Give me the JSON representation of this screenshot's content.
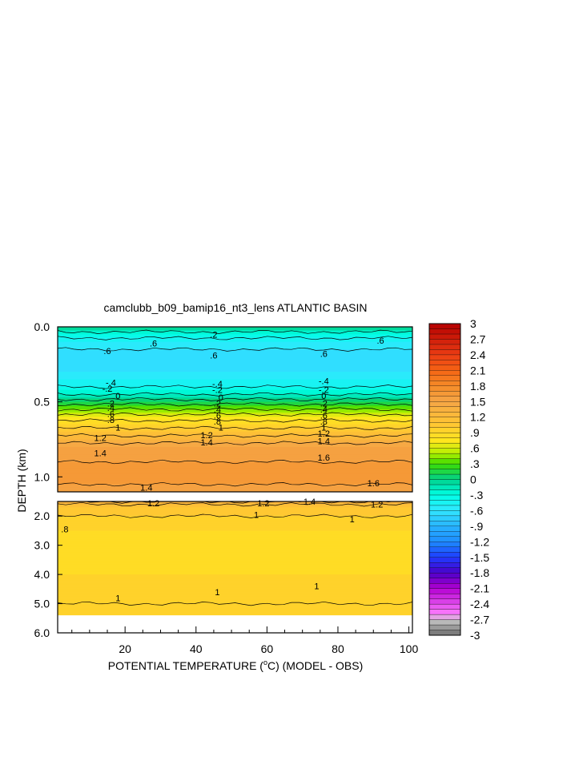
{
  "title": "camclubb_b09_bamip16_nt3_lens ATLANTIC BASIN",
  "ylabel": "DEPTH (km)",
  "xlabel": {
    "prefix": "POTENTIAL TEMPERATURE (",
    "degree": "o",
    "suffix": "C) (MODEL - OBS)"
  },
  "chart_data": {
    "type": "heatmap",
    "x_ticks": [
      20,
      40,
      60,
      80,
      100
    ],
    "x_tick_labels": [
      "20",
      "40",
      "60",
      "80",
      "100"
    ],
    "xlim": [
      1,
      101
    ],
    "upper_panel": {
      "ylim": [
        0.0,
        1.1
      ],
      "y_ticks": [
        0.0,
        0.5,
        1.0
      ],
      "y_tick_labels": [
        "0.0",
        "0.5",
        "1.0"
      ]
    },
    "lower_panel": {
      "ylim": [
        1.5,
        6.0
      ],
      "y_ticks": [
        2.0,
        3.0,
        4.0,
        5.0,
        6.0
      ],
      "y_tick_labels": [
        "2.0",
        "3.0",
        "4.0",
        "5.0",
        "6.0"
      ],
      "data_bottom_depth": 5.4
    },
    "depth_profile": {
      "depth_km": [
        0.0,
        0.05,
        0.1,
        0.15,
        0.2,
        0.25,
        0.3,
        0.35,
        0.4,
        0.45,
        0.5,
        0.55,
        0.6,
        0.65,
        0.7,
        0.75,
        0.8,
        0.85,
        0.9,
        0.95,
        1.0,
        1.05,
        1.1,
        1.5,
        1.6,
        1.7,
        2.0,
        2.5,
        3.0,
        3.5,
        4.0,
        4.5,
        5.0,
        5.4
      ],
      "anomaly_C": [
        0.0,
        -0.3,
        -0.5,
        -0.6,
        -0.6,
        -0.6,
        -0.6,
        -0.5,
        -0.4,
        -0.2,
        0.1,
        0.4,
        0.7,
        0.9,
        1.1,
        1.3,
        1.5,
        1.55,
        1.6,
        1.65,
        1.65,
        1.6,
        1.5,
        1.4,
        1.2,
        1.1,
        1.0,
        0.9,
        0.9,
        0.9,
        0.9,
        0.95,
        1.0,
        1.0
      ]
    },
    "contour_labels": [
      {
        "text": ".2",
        "x": 45,
        "y": 0.05,
        "panel": "upper"
      },
      {
        "text": ".6",
        "x": 28,
        "y": 0.11,
        "panel": "upper"
      },
      {
        "text": ".6",
        "x": 15,
        "y": 0.16,
        "panel": "upper"
      },
      {
        "text": ".6",
        "x": 45,
        "y": 0.19,
        "panel": "upper"
      },
      {
        "text": ".6",
        "x": 76,
        "y": 0.18,
        "panel": "upper"
      },
      {
        "text": ".6",
        "x": 92,
        "y": 0.09,
        "panel": "upper"
      },
      {
        "text": "-.4",
        "x": 16,
        "y": 0.37,
        "panel": "upper"
      },
      {
        "text": "-.2",
        "x": 15,
        "y": 0.41,
        "panel": "upper"
      },
      {
        "text": "0",
        "x": 18,
        "y": 0.46,
        "panel": "upper"
      },
      {
        "text": ".2",
        "x": 16,
        "y": 0.51,
        "panel": "upper"
      },
      {
        "text": ".4",
        "x": 16,
        "y": 0.54,
        "panel": "upper"
      },
      {
        "text": ".6",
        "x": 16,
        "y": 0.58,
        "panel": "upper"
      },
      {
        "text": ".8",
        "x": 16,
        "y": 0.62,
        "panel": "upper"
      },
      {
        "text": "1",
        "x": 18,
        "y": 0.67,
        "panel": "upper"
      },
      {
        "text": "1.2",
        "x": 13,
        "y": 0.74,
        "panel": "upper"
      },
      {
        "text": "1.4",
        "x": 13,
        "y": 0.84,
        "panel": "upper"
      },
      {
        "text": "-.4",
        "x": 46,
        "y": 0.38,
        "panel": "upper"
      },
      {
        "text": "-.2",
        "x": 46,
        "y": 0.42,
        "panel": "upper"
      },
      {
        "text": "0",
        "x": 47,
        "y": 0.47,
        "panel": "upper"
      },
      {
        "text": ".2",
        "x": 46,
        "y": 0.51,
        "panel": "upper"
      },
      {
        "text": ".4",
        "x": 46,
        "y": 0.55,
        "panel": "upper"
      },
      {
        "text": ".6",
        "x": 46,
        "y": 0.59,
        "panel": "upper"
      },
      {
        "text": ".8",
        "x": 46,
        "y": 0.63,
        "panel": "upper"
      },
      {
        "text": "1",
        "x": 47,
        "y": 0.67,
        "panel": "upper"
      },
      {
        "text": "1.2",
        "x": 43,
        "y": 0.72,
        "panel": "upper"
      },
      {
        "text": "1.4",
        "x": 43,
        "y": 0.77,
        "panel": "upper"
      },
      {
        "text": "-.4",
        "x": 76,
        "y": 0.36,
        "panel": "upper"
      },
      {
        "text": "-.2",
        "x": 76,
        "y": 0.42,
        "panel": "upper"
      },
      {
        "text": "0",
        "x": 76,
        "y": 0.46,
        "panel": "upper"
      },
      {
        "text": ".2",
        "x": 76,
        "y": 0.51,
        "panel": "upper"
      },
      {
        "text": ".4",
        "x": 76,
        "y": 0.55,
        "panel": "upper"
      },
      {
        "text": ".6",
        "x": 76,
        "y": 0.59,
        "panel": "upper"
      },
      {
        "text": ".8",
        "x": 76,
        "y": 0.63,
        "panel": "upper"
      },
      {
        "text": "1",
        "x": 76,
        "y": 0.67,
        "panel": "upper"
      },
      {
        "text": "1.2",
        "x": 76,
        "y": 0.71,
        "panel": "upper"
      },
      {
        "text": "1.4",
        "x": 76,
        "y": 0.76,
        "panel": "upper"
      },
      {
        "text": "1.6",
        "x": 76,
        "y": 0.87,
        "panel": "upper"
      },
      {
        "text": "1.4",
        "x": 26,
        "y": 1.07,
        "panel": "upper"
      },
      {
        "text": "1.6",
        "x": 90,
        "y": 1.04,
        "panel": "upper"
      },
      {
        "text": "1.2",
        "x": 28,
        "y": 1.55,
        "panel": "lower"
      },
      {
        "text": "1.2",
        "x": 59,
        "y": 1.55,
        "panel": "lower"
      },
      {
        "text": "1.4",
        "x": 72,
        "y": 1.5,
        "panel": "lower"
      },
      {
        "text": "1.2",
        "x": 91,
        "y": 1.6,
        "panel": "lower"
      },
      {
        "text": "1",
        "x": 57,
        "y": 1.95,
        "panel": "lower"
      },
      {
        "text": "1",
        "x": 84,
        "y": 2.1,
        "panel": "lower"
      },
      {
        "text": ".8",
        "x": 3,
        "y": 2.45,
        "panel": "lower"
      },
      {
        "text": "1",
        "x": 18,
        "y": 4.8,
        "panel": "lower"
      },
      {
        "text": "1",
        "x": 46,
        "y": 4.6,
        "panel": "lower"
      },
      {
        "text": "1",
        "x": 74,
        "y": 4.4,
        "panel": "lower"
      }
    ],
    "colorbar": {
      "levels": [
        -3,
        -2.9,
        -2.8,
        -2.7,
        -2.6,
        -2.5,
        -2.4,
        -2.3,
        -2.2,
        -2.1,
        -2.0,
        -1.9,
        -1.8,
        -1.7,
        -1.6,
        -1.5,
        -1.4,
        -1.3,
        -1.2,
        -1.1,
        -1.0,
        -0.9,
        -0.8,
        -0.7,
        -0.6,
        -0.5,
        -0.4,
        -0.3,
        -0.2,
        -0.1,
        0.0,
        0.1,
        0.2,
        0.3,
        0.4,
        0.5,
        0.6,
        0.7,
        0.8,
        0.9,
        1.0,
        1.1,
        1.2,
        1.3,
        1.4,
        1.5,
        1.6,
        1.7,
        1.8,
        1.9,
        2.0,
        2.1,
        2.2,
        2.3,
        2.4,
        2.5,
        2.6,
        2.7,
        2.8,
        2.9,
        3.0
      ],
      "tick_values": [
        3,
        2.7,
        2.4,
        2.1,
        1.8,
        1.5,
        1.2,
        0.9,
        0.6,
        0.3,
        0,
        -0.3,
        -0.6,
        -0.9,
        -1.2,
        -1.5,
        -1.8,
        -2.1,
        -2.4,
        -2.7,
        -3
      ],
      "tick_labels": [
        "3",
        "2.7",
        "2.4",
        "2.1",
        "1.8",
        "1.5",
        "1.2",
        ".9",
        ".6",
        ".3",
        "0",
        "-.3",
        "-.6",
        "-.9",
        "-1.2",
        "-1.5",
        "-1.8",
        "-2.1",
        "-2.4",
        "-2.7",
        "-3"
      ],
      "color_stops": [
        {
          "v": -3.0,
          "c": "#6e6e6e"
        },
        {
          "v": -2.7,
          "c": "#c8c8c8"
        },
        {
          "v": -2.6,
          "c": "#ff80ff"
        },
        {
          "v": -2.1,
          "c": "#b400d2"
        },
        {
          "v": -1.8,
          "c": "#4b00c8"
        },
        {
          "v": -1.5,
          "c": "#1e3cff"
        },
        {
          "v": -1.2,
          "c": "#1e8cff"
        },
        {
          "v": -0.9,
          "c": "#28b4ff"
        },
        {
          "v": -0.6,
          "c": "#32e6ff"
        },
        {
          "v": -0.3,
          "c": "#00ffe6"
        },
        {
          "v": 0.0,
          "c": "#00d28c"
        },
        {
          "v": 0.3,
          "c": "#3cdc00"
        },
        {
          "v": 0.5,
          "c": "#b4f000"
        },
        {
          "v": 0.75,
          "c": "#ffe61e"
        },
        {
          "v": 1.05,
          "c": "#ffc832"
        },
        {
          "v": 1.5,
          "c": "#f5a546"
        },
        {
          "v": 1.8,
          "c": "#f58c28"
        },
        {
          "v": 2.1,
          "c": "#f56414"
        },
        {
          "v": 2.4,
          "c": "#eb3c14"
        },
        {
          "v": 3.0,
          "c": "#b40000"
        }
      ]
    }
  }
}
